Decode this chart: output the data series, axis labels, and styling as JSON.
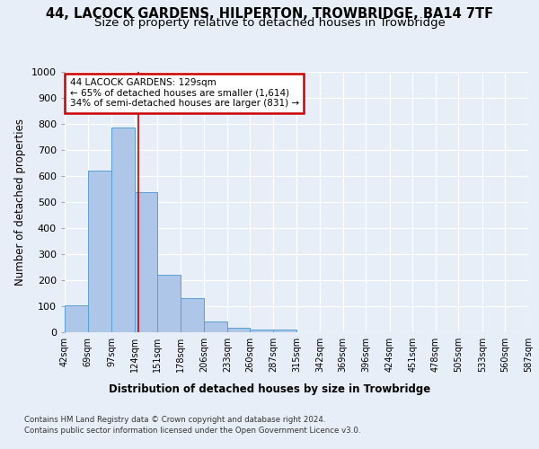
{
  "title": "44, LACOCK GARDENS, HILPERTON, TROWBRIDGE, BA14 7TF",
  "subtitle": "Size of property relative to detached houses in Trowbridge",
  "xlabel": "Distribution of detached houses by size in Trowbridge",
  "ylabel": "Number of detached properties",
  "footer_line1": "Contains HM Land Registry data © Crown copyright and database right 2024.",
  "footer_line2": "Contains public sector information licensed under the Open Government Licence v3.0.",
  "bin_edges": [
    42,
    69,
    97,
    124,
    151,
    178,
    206,
    233,
    260,
    287,
    315,
    342,
    369,
    396,
    424,
    451,
    478,
    505,
    533,
    560,
    587
  ],
  "bar_heights": [
    103,
    621,
    787,
    537,
    221,
    132,
    43,
    16,
    9,
    12,
    0,
    0,
    0,
    0,
    0,
    0,
    0,
    0,
    0,
    0
  ],
  "bar_color": "#aec6e8",
  "bar_edge_color": "#5a9fd4",
  "property_size": 129,
  "annotation_title": "44 LACOCK GARDENS: 129sqm",
  "annotation_line2": "← 65% of detached houses are smaller (1,614)",
  "annotation_line3": "34% of semi-detached houses are larger (831) →",
  "annotation_box_color": "#ffffff",
  "annotation_box_edge_color": "#cc0000",
  "redline_color": "#cc0000",
  "ylim": [
    0,
    1000
  ],
  "yticks": [
    0,
    100,
    200,
    300,
    400,
    500,
    600,
    700,
    800,
    900,
    1000
  ],
  "background_color": "#e8eef8",
  "plot_bg_color": "#e8eef8",
  "grid_color": "#ffffff",
  "title_fontsize": 10.5,
  "subtitle_fontsize": 9.5,
  "xlabel_fontsize": 8.5,
  "ylabel_fontsize": 8.5
}
